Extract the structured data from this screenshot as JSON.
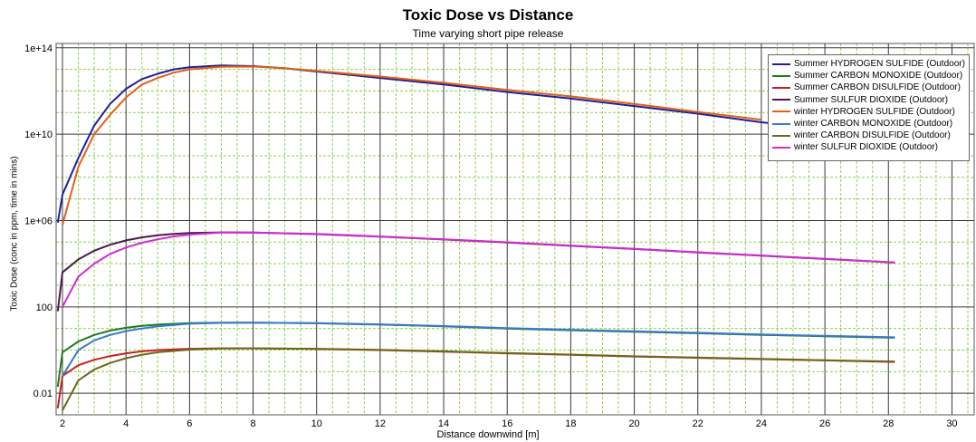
{
  "chart_data": {
    "type": "line",
    "title": "Toxic Dose vs Distance",
    "subtitle": "Time varying short pipe release",
    "xlabel": "Distance downwind [m]",
    "ylabel": "Toxic Dose (conc in ppm, time in mins)",
    "y_scale": "log",
    "xlim": [
      1.8,
      30.7
    ],
    "ylim_log10": [
      -3.0,
      14.2
    ],
    "x_ticks": [
      2,
      4,
      6,
      8,
      10,
      12,
      14,
      16,
      18,
      20,
      22,
      24,
      26,
      28,
      30
    ],
    "x_tick_labels": [
      "2",
      "4",
      "6",
      "8",
      "10",
      "12",
      "14",
      "16",
      "18",
      "20",
      "22",
      "24",
      "26",
      "28",
      "30"
    ],
    "y_ticks_log10": [
      -2,
      2,
      6,
      10,
      14
    ],
    "y_tick_labels": [
      "0.01",
      "100",
      "1e+06",
      "1e+10",
      "1e+14"
    ],
    "grid": true,
    "legend_position": "top-right",
    "series": [
      {
        "name": "Summer HYDROGEN SULFIDE (Outdoor)",
        "color": "#1f1f9a",
        "x": [
          1.85,
          2.0,
          2.5,
          3.0,
          3.5,
          4.0,
          4.5,
          5.0,
          5.5,
          6.0,
          7.0,
          8.0,
          9.0,
          10.0,
          12.0,
          14.0,
          16.0,
          18.0,
          20.0,
          22.0,
          24.0,
          26.0,
          28.2
        ],
        "log10_y": [
          5.9,
          7.2,
          8.9,
          10.4,
          11.4,
          12.1,
          12.55,
          12.8,
          13.0,
          13.1,
          13.18,
          13.15,
          13.05,
          12.9,
          12.6,
          12.3,
          11.95,
          11.65,
          11.3,
          10.95,
          10.55,
          10.25,
          10.0
        ]
      },
      {
        "name": "Summer CARBON MONOXIDE (Outdoor)",
        "color": "#1e7a1e",
        "x": [
          1.85,
          2.0,
          2.5,
          3.0,
          3.5,
          4.0,
          4.5,
          5.0,
          6.0,
          7.0,
          8.0,
          10.0,
          12.0,
          14.0,
          16.0,
          18.0,
          20.0,
          22.0,
          24.0,
          26.0,
          28.2
        ],
        "log10_y": [
          -1.7,
          -0.1,
          0.4,
          0.7,
          0.9,
          1.03,
          1.12,
          1.18,
          1.25,
          1.27,
          1.27,
          1.24,
          1.18,
          1.1,
          1.0,
          0.92,
          0.85,
          0.78,
          0.7,
          0.64,
          0.57
        ]
      },
      {
        "name": "Summer CARBON DISULFIDE (Outdoor)",
        "color": "#c81e1e",
        "x": [
          1.85,
          2.0,
          2.5,
          3.0,
          3.5,
          4.0,
          4.5,
          5.0,
          6.0,
          7.0,
          8.0,
          10.0,
          12.0,
          14.0,
          16.0,
          18.0,
          20.0,
          22.0,
          24.0,
          26.0,
          28.2
        ],
        "log10_y": [
          -2.7,
          -1.2,
          -0.7,
          -0.45,
          -0.28,
          -0.15,
          -0.06,
          0.0,
          0.06,
          0.08,
          0.08,
          0.05,
          0.0,
          -0.07,
          -0.15,
          -0.22,
          -0.3,
          -0.36,
          -0.42,
          -0.48,
          -0.55
        ]
      },
      {
        "name": "Summer SULFUR DIOXIDE (Outdoor)",
        "color": "#4a1a4a",
        "x": [
          1.85,
          2.0,
          2.5,
          3.0,
          3.5,
          4.0,
          4.5,
          5.0,
          5.5,
          6.0,
          7.0,
          8.0,
          10.0,
          12.0,
          14.0,
          16.0,
          18.0,
          20.0,
          22.0,
          24.0,
          26.0,
          28.2
        ],
        "log10_y": [
          1.8,
          3.6,
          4.2,
          4.6,
          4.88,
          5.08,
          5.22,
          5.32,
          5.38,
          5.42,
          5.45,
          5.44,
          5.37,
          5.25,
          5.12,
          4.98,
          4.83,
          4.68,
          4.52,
          4.37,
          4.22,
          4.05
        ]
      },
      {
        "name": "winter HYDROGEN SULFIDE (Outdoor)",
        "color": "#e0601a",
        "x": [
          2.0,
          2.5,
          3.0,
          3.5,
          4.0,
          4.5,
          5.0,
          5.5,
          6.0,
          7.0,
          8.0,
          9.0,
          10.0,
          12.0,
          14.0,
          16.0,
          18.0,
          20.0,
          22.0,
          24.0
        ],
        "log10_y": [
          5.8,
          8.5,
          10.0,
          10.9,
          11.7,
          12.3,
          12.6,
          12.85,
          13.0,
          13.12,
          13.13,
          13.05,
          12.93,
          12.67,
          12.38,
          12.05,
          11.75,
          11.4,
          11.03,
          10.67
        ]
      },
      {
        "name": "winter CARBON MONOXIDE (Outdoor)",
        "color": "#3a78d0",
        "x": [
          2.0,
          2.5,
          3.0,
          3.5,
          4.0,
          4.5,
          5.0,
          6.0,
          7.0,
          8.0,
          10.0,
          12.0,
          14.0,
          16.0,
          18.0,
          20.0,
          22.0,
          24.0,
          26.0,
          28.2
        ],
        "log10_y": [
          -1.2,
          0.0,
          0.45,
          0.7,
          0.88,
          1.0,
          1.1,
          1.22,
          1.26,
          1.27,
          1.25,
          1.19,
          1.11,
          1.02,
          0.94,
          0.87,
          0.8,
          0.72,
          0.66,
          0.59
        ]
      },
      {
        "name": "winter CARBON DISULFIDE (Outdoor)",
        "color": "#6a6a1a",
        "x": [
          2.0,
          2.5,
          3.0,
          3.5,
          4.0,
          4.5,
          5.0,
          6.0,
          7.0,
          8.0,
          10.0,
          12.0,
          14.0,
          16.0,
          18.0,
          20.0,
          22.0,
          24.0,
          26.0,
          28.2
        ],
        "log10_y": [
          -2.8,
          -1.4,
          -0.9,
          -0.6,
          -0.38,
          -0.22,
          -0.1,
          0.02,
          0.07,
          0.08,
          0.06,
          0.01,
          -0.06,
          -0.14,
          -0.21,
          -0.29,
          -0.35,
          -0.41,
          -0.47,
          -0.53
        ]
      },
      {
        "name": "winter SULFUR DIOXIDE (Outdoor)",
        "color": "#d22bd2",
        "x": [
          2.0,
          2.5,
          3.0,
          3.5,
          4.0,
          4.5,
          5.0,
          5.5,
          6.0,
          7.0,
          8.0,
          10.0,
          12.0,
          14.0,
          16.0,
          18.0,
          20.0,
          22.0,
          24.0,
          26.0,
          28.2
        ],
        "log10_y": [
          2.0,
          3.4,
          4.0,
          4.45,
          4.75,
          4.97,
          5.13,
          5.26,
          5.35,
          5.44,
          5.44,
          5.38,
          5.26,
          5.13,
          4.99,
          4.84,
          4.69,
          4.53,
          4.38,
          4.23,
          4.06
        ]
      }
    ]
  }
}
